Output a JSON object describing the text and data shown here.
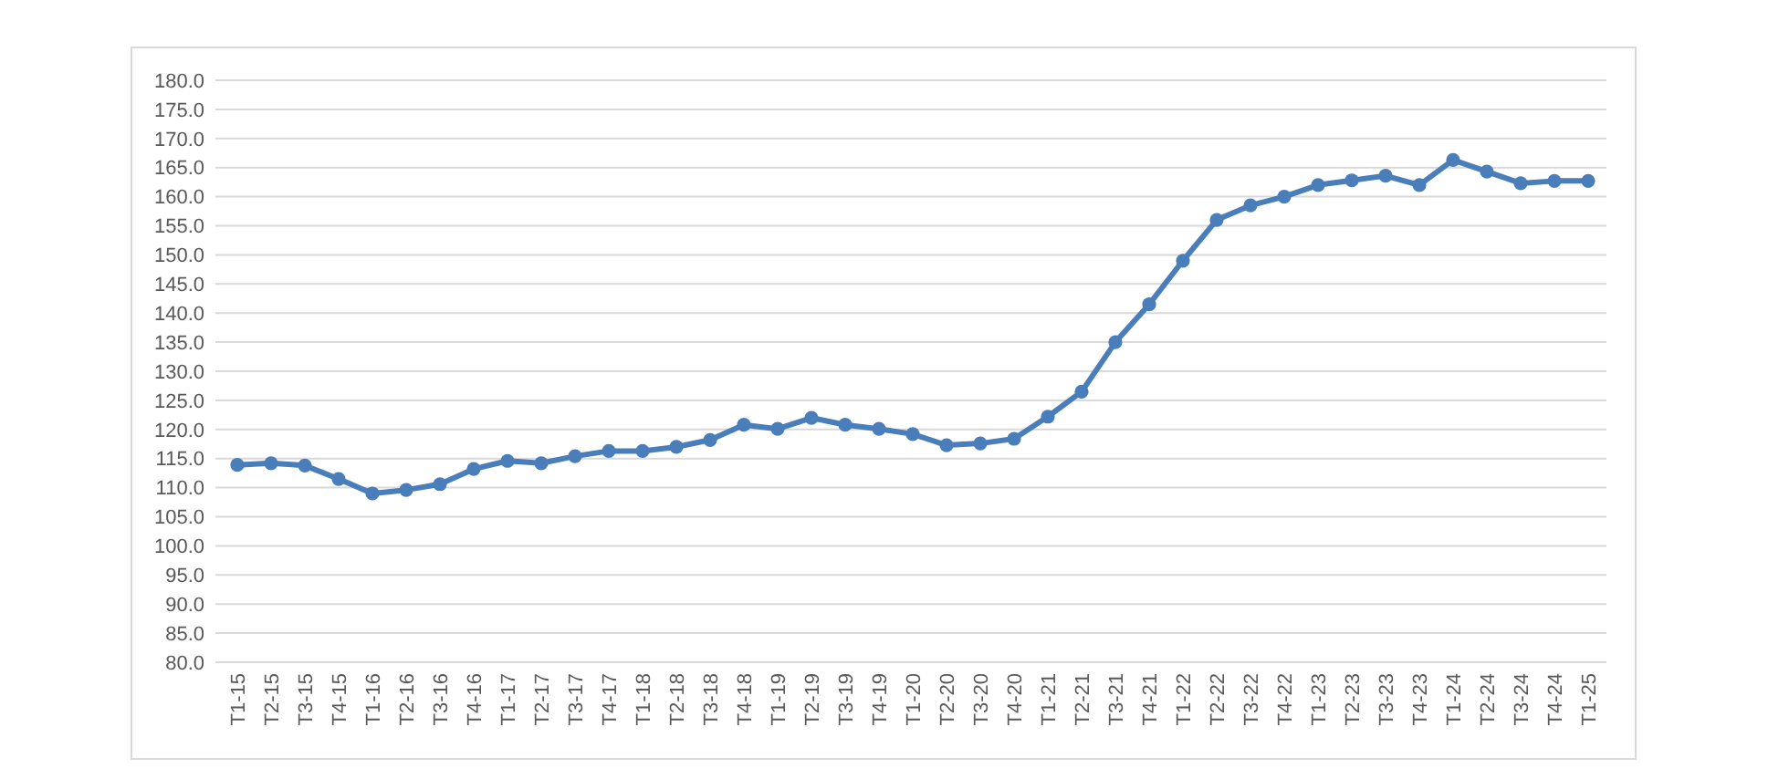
{
  "chart_data": {
    "type": "line",
    "categories": [
      "T1-15",
      "T2-15",
      "T3-15",
      "T4-15",
      "T1-16",
      "T2-16",
      "T3-16",
      "T4-16",
      "T1-17",
      "T2-17",
      "T3-17",
      "T4-17",
      "T1-18",
      "T2-18",
      "T3-18",
      "T4-18",
      "T1-19",
      "T2-19",
      "T3-19",
      "T4-19",
      "T1-20",
      "T2-20",
      "T3-20",
      "T4-20",
      "T1-21",
      "T2-21",
      "T3-21",
      "T4-21",
      "T1-22",
      "T2-22",
      "T3-22",
      "T4-22",
      "T1-23",
      "T2-23",
      "T3-23",
      "T4-23",
      "T1-24",
      "T2-24",
      "T3-24",
      "T4-24",
      "T1-25"
    ],
    "series": [
      {
        "color": "#4a7ebb",
        "values": [
          113.9,
          114.2,
          113.8,
          111.5,
          109.0,
          109.6,
          110.6,
          113.2,
          114.6,
          114.2,
          115.4,
          116.3,
          116.3,
          117.0,
          118.2,
          120.8,
          120.1,
          122.0,
          120.8,
          120.1,
          119.2,
          117.3,
          117.6,
          118.4,
          122.2,
          126.5,
          135.0,
          141.5,
          149.0,
          156.0,
          158.5,
          160.0,
          162.0,
          162.8,
          163.6,
          162.0,
          166.3,
          164.3,
          162.3,
          162.7,
          162.7
        ]
      }
    ],
    "ylim": [
      80,
      180
    ],
    "yticks": [
      {
        "value": 80,
        "label": "80.0"
      },
      {
        "value": 85,
        "label": "85.0"
      },
      {
        "value": 90,
        "label": "90.0"
      },
      {
        "value": 95,
        "label": "95.0"
      },
      {
        "value": 100,
        "label": "100.0"
      },
      {
        "value": 105,
        "label": "105.0"
      },
      {
        "value": 110,
        "label": "110.0"
      },
      {
        "value": 115,
        "label": "115.0"
      },
      {
        "value": 120,
        "label": "120.0"
      },
      {
        "value": 125,
        "label": "125.0"
      },
      {
        "value": 130,
        "label": "130.0"
      },
      {
        "value": 135,
        "label": "135.0"
      },
      {
        "value": 140,
        "label": "140.0"
      },
      {
        "value": 145,
        "label": "145.0"
      },
      {
        "value": 150,
        "label": "150.0"
      },
      {
        "value": 155,
        "label": "155.0"
      },
      {
        "value": 160,
        "label": "160.0"
      },
      {
        "value": 165,
        "label": "165.0"
      },
      {
        "value": 170,
        "label": "170.0"
      },
      {
        "value": 175,
        "label": "175.0"
      },
      {
        "value": 180,
        "label": "180.0"
      }
    ],
    "grid": "y",
    "marker": "circle",
    "line_style": "solid"
  }
}
